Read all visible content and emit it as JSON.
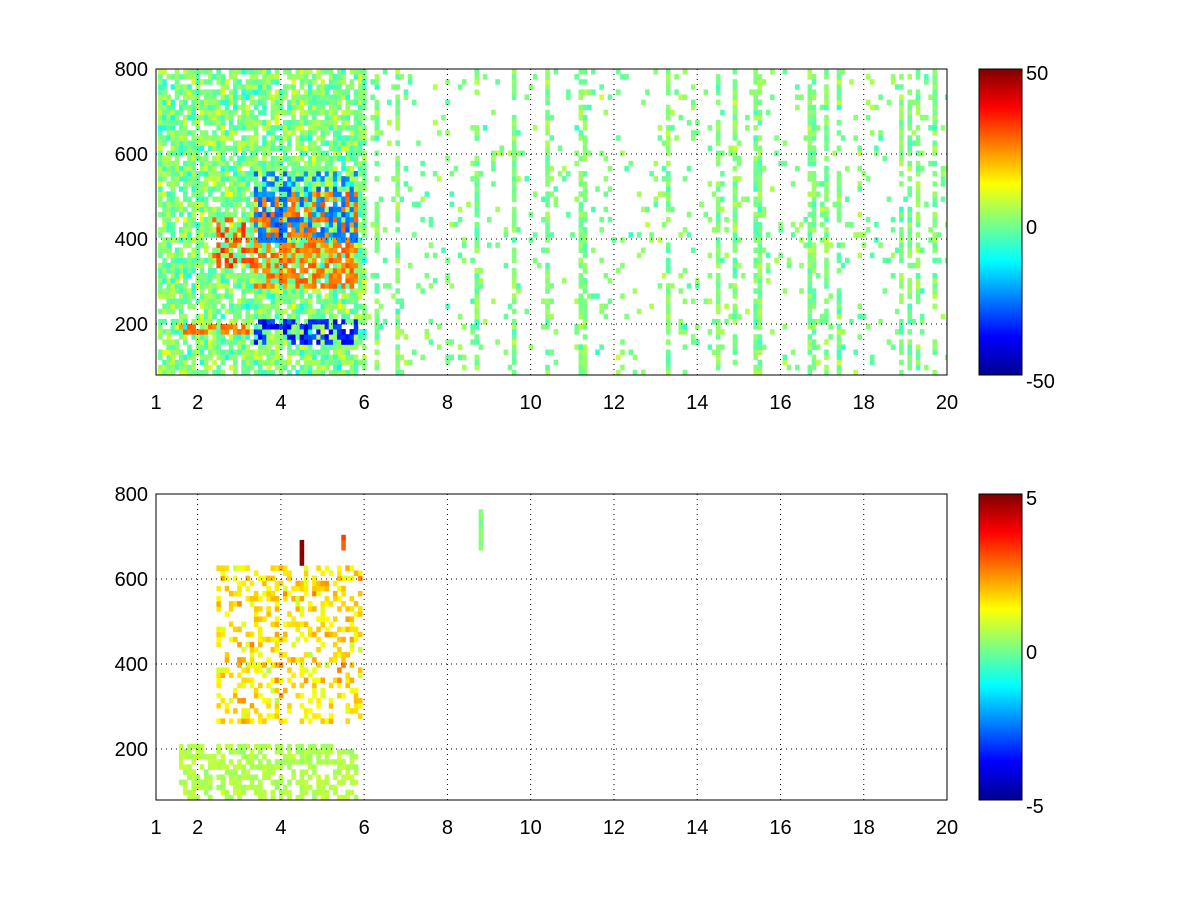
{
  "chart_data": [
    {
      "type": "heatmap",
      "title": "",
      "xlabel": "",
      "ylabel": "",
      "xlim": [
        1,
        20
      ],
      "ylim": [
        80,
        800
      ],
      "x_ticks": [
        1,
        2,
        4,
        6,
        8,
        10,
        12,
        14,
        16,
        18,
        20
      ],
      "y_ticks": [
        200,
        400,
        600,
        800
      ],
      "grid": true,
      "colormap": "jet",
      "clim": [
        -50,
        50
      ],
      "colorbar_ticks": [
        -50,
        0,
        50
      ],
      "colorbar_tick_labels": [
        "-50",
        "0",
        "50"
      ],
      "features": [
        {
          "description": "dense mixed values",
          "x_range": [
            1,
            6
          ],
          "y_range": [
            80,
            800
          ]
        },
        {
          "description": "positive ridge",
          "x_range": [
            2.3,
            3.4
          ],
          "y_range": [
            330,
            450
          ],
          "value": 35
        },
        {
          "description": "positive ridge",
          "x_range": [
            3.3,
            5.8
          ],
          "y_range": [
            280,
            500
          ],
          "value": 30
        },
        {
          "description": "negative band",
          "x_range": [
            3.3,
            5.8
          ],
          "y_range": [
            150,
            200
          ],
          "value": -40
        },
        {
          "description": "positive band",
          "x_range": [
            1.5,
            3.2
          ],
          "y_range": [
            165,
            195
          ],
          "value": 30
        },
        {
          "description": "sparse near-zero values",
          "x_range": [
            6,
            20
          ],
          "y_range": [
            80,
            800
          ]
        }
      ]
    },
    {
      "type": "heatmap",
      "title": "",
      "xlabel": "",
      "ylabel": "",
      "xlim": [
        1,
        20
      ],
      "ylim": [
        80,
        800
      ],
      "x_ticks": [
        1,
        2,
        4,
        6,
        8,
        10,
        12,
        14,
        16,
        18,
        20
      ],
      "y_ticks": [
        200,
        400,
        600,
        800
      ],
      "grid": true,
      "colormap": "jet",
      "clim": [
        -5,
        5
      ],
      "colorbar_ticks": [
        -5,
        0,
        5
      ],
      "colorbar_tick_labels": [
        "-5",
        "0",
        "5"
      ],
      "features": [
        {
          "description": "near-zero base",
          "x_range": [
            1.5,
            5.8
          ],
          "y_range": [
            80,
            210
          ],
          "value": 0.5
        },
        {
          "description": "mixed small values",
          "x_range": [
            2.4,
            5.9
          ],
          "y_range": [
            260,
            620
          ],
          "value": 1.5
        },
        {
          "description": "isolated column",
          "x_range": [
            8.7,
            8.8
          ],
          "y_range": [
            660,
            760
          ],
          "value": 0
        },
        {
          "description": "isolated column",
          "x_range": [
            4.4,
            4.5
          ],
          "y_range": [
            630,
            680
          ],
          "value": 5
        },
        {
          "description": "isolated column",
          "x_range": [
            5.4,
            5.5
          ],
          "y_range": [
            660,
            700
          ],
          "value": 3
        }
      ]
    }
  ]
}
